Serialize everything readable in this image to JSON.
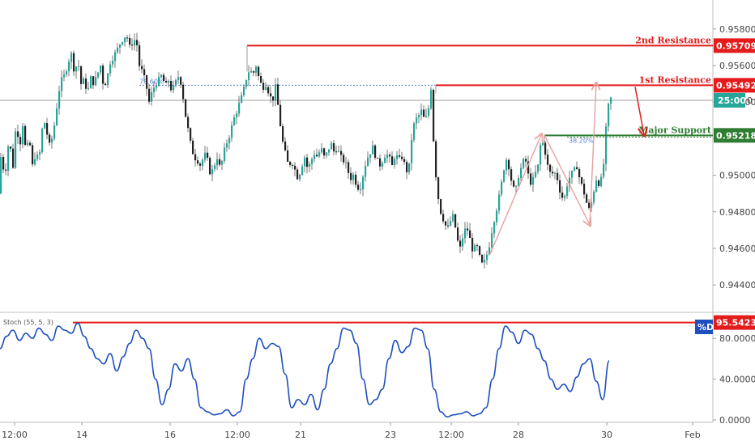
{
  "chart_data": [
    {
      "type": "candlestick",
      "x_ticks": [
        "12:00",
        "14",
        "16",
        "12:00",
        "21",
        "23",
        "12:00",
        "28",
        "30",
        "Feb"
      ],
      "y_ticks": [
        "0.94400",
        "0.94600",
        "0.94800",
        "0.95000",
        "0.95200",
        "0.95400",
        "0.95600",
        "0.95800"
      ],
      "ylim": [
        0.9433,
        0.9587
      ],
      "price_path": [
        [
          0,
          0.949
        ],
        [
          3,
          0.951
        ],
        [
          8,
          0.95
        ],
        [
          13,
          0.952
        ],
        [
          18,
          0.9505
        ],
        [
          22,
          0.953
        ],
        [
          26,
          0.9515
        ],
        [
          30,
          0.9528
        ],
        [
          34,
          0.9512
        ],
        [
          38,
          0.952
        ],
        [
          42,
          0.9505
        ],
        [
          46,
          0.9512
        ],
        [
          50,
          0.9508
        ],
        [
          54,
          0.9525
        ],
        [
          58,
          0.953
        ],
        [
          62,
          0.9515
        ],
        [
          66,
          0.952
        ],
        [
          70,
          0.953
        ],
        [
          74,
          0.9545
        ],
        [
          78,
          0.9552
        ],
        [
          82,
          0.9555
        ],
        [
          86,
          0.9562
        ],
        [
          90,
          0.9566
        ],
        [
          94,
          0.9556
        ],
        [
          98,
          0.9563
        ],
        [
          102,
          0.955
        ],
        [
          106,
          0.9552
        ],
        [
          110,
          0.9545
        ],
        [
          114,
          0.9553
        ],
        [
          118,
          0.955
        ],
        [
          122,
          0.9555
        ],
        [
          126,
          0.956
        ],
        [
          130,
          0.9548
        ],
        [
          134,
          0.9553
        ],
        [
          138,
          0.9562
        ],
        [
          142,
          0.9565
        ],
        [
          146,
          0.9568
        ],
        [
          150,
          0.9572
        ],
        [
          154,
          0.9575
        ],
        [
          158,
          0.9577
        ],
        [
          162,
          0.957
        ],
        [
          166,
          0.9573
        ],
        [
          170,
          0.9575
        ],
        [
          174,
          0.956
        ],
        [
          178,
          0.9556
        ],
        [
          182,
          0.955
        ],
        [
          186,
          0.954
        ],
        [
          190,
          0.9546
        ],
        [
          194,
          0.955
        ],
        [
          198,
          0.9552
        ],
        [
          202,
          0.9555
        ],
        [
          206,
          0.9548
        ],
        [
          210,
          0.9552
        ],
        [
          214,
          0.9546
        ],
        [
          218,
          0.955
        ],
        [
          222,
          0.9554
        ],
        [
          226,
          0.955
        ],
        [
          230,
          0.9535
        ],
        [
          234,
          0.9525
        ],
        [
          238,
          0.9515
        ],
        [
          242,
          0.951
        ],
        [
          246,
          0.9508
        ],
        [
          250,
          0.9505
        ],
        [
          254,
          0.9512
        ],
        [
          258,
          0.9508
        ],
        [
          262,
          0.95
        ],
        [
          266,
          0.9505
        ],
        [
          270,
          0.951
        ],
        [
          274,
          0.9503
        ],
        [
          278,
          0.9512
        ],
        [
          282,
          0.9518
        ],
        [
          286,
          0.9523
        ],
        [
          290,
          0.953
        ],
        [
          294,
          0.9535
        ],
        [
          298,
          0.954
        ],
        [
          302,
          0.9545
        ],
        [
          306,
          0.9553
        ],
        [
          310,
          0.9558
        ],
        [
          314,
          0.9555
        ],
        [
          318,
          0.956
        ],
        [
          322,
          0.9552
        ],
        [
          326,
          0.9548
        ],
        [
          330,
          0.955
        ],
        [
          334,
          0.9545
        ],
        [
          338,
          0.954
        ],
        [
          342,
          0.9548
        ],
        [
          346,
          0.9535
        ],
        [
          350,
          0.952
        ],
        [
          354,
          0.9512
        ],
        [
          358,
          0.9505
        ],
        [
          362,
          0.9508
        ],
        [
          366,
          0.9503
        ],
        [
          370,
          0.9498
        ],
        [
          374,
          0.9505
        ],
        [
          378,
          0.951
        ],
        [
          382,
          0.9503
        ],
        [
          386,
          0.9508
        ],
        [
          390,
          0.9512
        ],
        [
          394,
          0.951
        ],
        [
          398,
          0.9515
        ],
        [
          402,
          0.951
        ],
        [
          406,
          0.9512
        ],
        [
          410,
          0.9518
        ],
        [
          414,
          0.9513
        ],
        [
          418,
          0.9515
        ],
        [
          422,
          0.951
        ],
        [
          426,
          0.9508
        ],
        [
          430,
          0.9505
        ],
        [
          434,
          0.9498
        ],
        [
          438,
          0.95
        ],
        [
          442,
          0.9495
        ],
        [
          446,
          0.9492
        ],
        [
          450,
          0.95
        ],
        [
          454,
          0.9508
        ],
        [
          458,
          0.9512
        ],
        [
          462,
          0.9515
        ],
        [
          466,
          0.951
        ],
        [
          470,
          0.9505
        ],
        [
          474,
          0.9508
        ],
        [
          478,
          0.9512
        ],
        [
          482,
          0.951
        ],
        [
          486,
          0.9505
        ],
        [
          490,
          0.9512
        ],
        [
          494,
          0.9508
        ],
        [
          498,
          0.951
        ],
        [
          502,
          0.9505
        ],
        [
          506,
          0.95
        ],
        [
          510,
          0.952
        ],
        [
          514,
          0.953
        ],
        [
          518,
          0.9532
        ],
        [
          522,
          0.9535
        ],
        [
          526,
          0.953
        ],
        [
          530,
          0.9533
        ],
        [
          534,
          0.9548
        ],
        [
          538,
          0.951
        ],
        [
          542,
          0.949
        ],
        [
          546,
          0.948
        ],
        [
          550,
          0.9475
        ],
        [
          554,
          0.947
        ],
        [
          558,
          0.9475
        ],
        [
          562,
          0.9478
        ],
        [
          566,
          0.9465
        ],
        [
          570,
          0.946
        ],
        [
          574,
          0.9468
        ],
        [
          578,
          0.9472
        ],
        [
          582,
          0.9465
        ],
        [
          586,
          0.9458
        ],
        [
          590,
          0.9462
        ],
        [
          594,
          0.9455
        ],
        [
          598,
          0.945
        ],
        [
          602,
          0.9455
        ],
        [
          606,
          0.9462
        ],
        [
          610,
          0.9472
        ],
        [
          614,
          0.948
        ],
        [
          618,
          0.9488
        ],
        [
          622,
          0.9498
        ],
        [
          626,
          0.951
        ],
        [
          630,
          0.9505
        ],
        [
          634,
          0.9495
        ],
        [
          638,
          0.949
        ],
        [
          642,
          0.95
        ],
        [
          646,
          0.9505
        ],
        [
          650,
          0.951
        ],
        [
          654,
          0.95
        ],
        [
          658,
          0.9495
        ],
        [
          662,
          0.95
        ],
        [
          666,
          0.9505
        ],
        [
          670,
          0.952
        ],
        [
          674,
          0.9515
        ],
        [
          678,
          0.9505
        ],
        [
          682,
          0.95
        ],
        [
          686,
          0.9502
        ],
        [
          690,
          0.9498
        ],
        [
          694,
          0.949
        ],
        [
          698,
          0.9486
        ],
        [
          702,
          0.9495
        ],
        [
          706,
          0.95
        ],
        [
          710,
          0.9502
        ],
        [
          714,
          0.9505
        ],
        [
          718,
          0.9497
        ],
        [
          722,
          0.9492
        ],
        [
          726,
          0.9485
        ],
        [
          730,
          0.948
        ],
        [
          734,
          0.949
        ],
        [
          738,
          0.9498
        ],
        [
          742,
          0.9495
        ],
        [
          746,
          0.95
        ],
        [
          750,
          0.9525
        ],
        [
          754,
          0.9542
        ]
      ],
      "annotations": [
        {
          "label": "2nd Resistance",
          "value": 0.95709,
          "badge": "0.95709",
          "color": "#e31b1b"
        },
        {
          "label": "1st Resistance",
          "value": 0.95492,
          "badge": "0.95492",
          "color": "#e31b1b"
        },
        {
          "label": "Major Support",
          "value": 0.95218,
          "badge": "0.95218",
          "color": "#2e7d32"
        }
      ],
      "countdown_badge": "25:00",
      "current_price": 0.9541,
      "fib_labels": [
        "78.60%",
        "38.20%"
      ],
      "fib_levels": [
        0.95492,
        0.95218
      ]
    },
    {
      "type": "line",
      "indicator_label": "Stoch (55, 5, 3)",
      "series_badge": "%D",
      "y_ticks": [
        "0.0000",
        "40.0000",
        "80.0000"
      ],
      "ylim": [
        0,
        100
      ],
      "resistance_level": 95.5423,
      "resistance_badge": "95.5423",
      "values_x": [
        0,
        8,
        16,
        24,
        32,
        40,
        48,
        56,
        64,
        72,
        80,
        88,
        96,
        104,
        112,
        120,
        128,
        136,
        144,
        152,
        160,
        168,
        176,
        184,
        192,
        200,
        208,
        216,
        224,
        232,
        240,
        248,
        256,
        264,
        272,
        280,
        288,
        296,
        304,
        312,
        320,
        328,
        336,
        344,
        352,
        360,
        368,
        376,
        384,
        392,
        400,
        408,
        416,
        424,
        432,
        440,
        448,
        456,
        464,
        472,
        480,
        488,
        496,
        504,
        512,
        520,
        528,
        536,
        544,
        552,
        560,
        568,
        576,
        584,
        592,
        600,
        608,
        616,
        624,
        632,
        640,
        648,
        656,
        664,
        672,
        680,
        688,
        696,
        704,
        712,
        720,
        728,
        736,
        744,
        752
      ],
      "values": [
        70,
        82,
        88,
        78,
        85,
        80,
        90,
        84,
        78,
        92,
        88,
        85,
        95,
        82,
        70,
        60,
        55,
        65,
        48,
        62,
        75,
        88,
        80,
        70,
        40,
        15,
        30,
        55,
        48,
        60,
        40,
        12,
        8,
        5,
        6,
        10,
        4,
        8,
        40,
        60,
        80,
        70,
        75,
        72,
        45,
        12,
        20,
        15,
        25,
        10,
        30,
        55,
        70,
        90,
        88,
        75,
        40,
        15,
        20,
        30,
        60,
        78,
        66,
        72,
        90,
        88,
        70,
        30,
        8,
        3,
        5,
        6,
        8,
        4,
        6,
        12,
        40,
        70,
        92,
        86,
        75,
        88,
        84,
        70,
        58,
        40,
        30,
        35,
        28,
        42,
        55,
        60,
        38,
        20,
        58
      ]
    }
  ]
}
